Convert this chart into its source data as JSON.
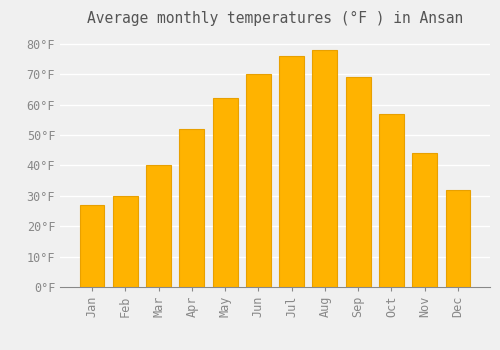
{
  "title": "Average monthly temperatures (°F ) in Ansan",
  "months": [
    "Jan",
    "Feb",
    "Mar",
    "Apr",
    "May",
    "Jun",
    "Jul",
    "Aug",
    "Sep",
    "Oct",
    "Nov",
    "Dec"
  ],
  "values": [
    27,
    30,
    40,
    52,
    62,
    70,
    76,
    78,
    69,
    57,
    44,
    32
  ],
  "bar_color_main": "#FFB300",
  "bar_color_edge": "#E8A000",
  "background_color": "#F0F0F0",
  "grid_color": "#FFFFFF",
  "ylim": [
    0,
    84
  ],
  "yticks": [
    0,
    10,
    20,
    30,
    40,
    50,
    60,
    70,
    80
  ],
  "ytick_labels": [
    "0°F",
    "10°F",
    "20°F",
    "30°F",
    "40°F",
    "50°F",
    "60°F",
    "70°F",
    "80°F"
  ],
  "title_fontsize": 10.5,
  "tick_fontsize": 8.5,
  "bar_width": 0.75
}
